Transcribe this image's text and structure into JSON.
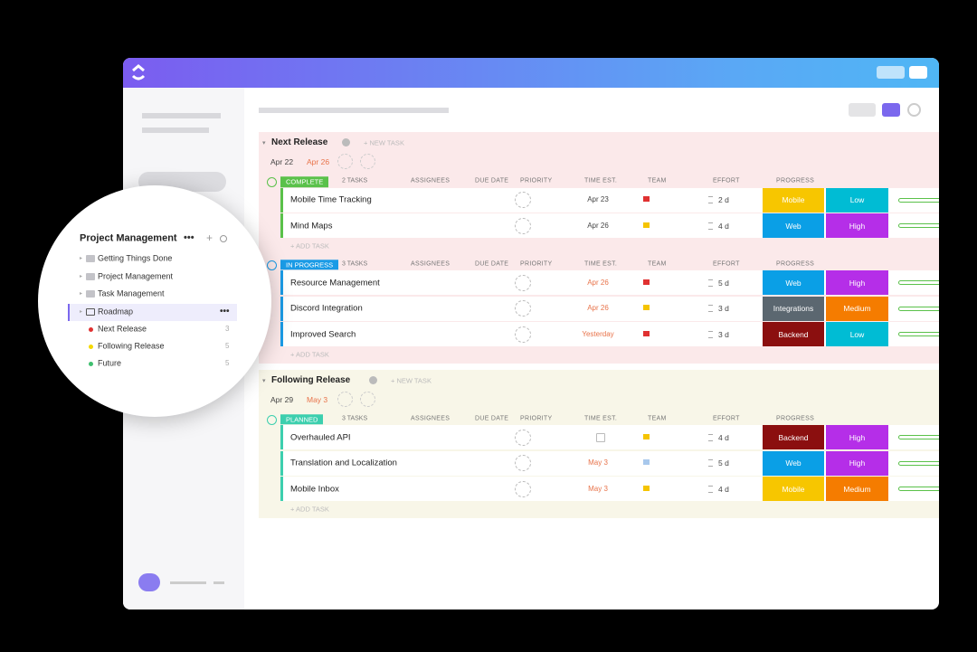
{
  "sidebar": {
    "title": "Project Management",
    "folders": [
      "Getting Things Done",
      "Project Management",
      "Task Management",
      "Roadmap"
    ],
    "lists": [
      {
        "name": "Next Release",
        "count": 3,
        "color": "#e03131"
      },
      {
        "name": "Following Release",
        "count": 5,
        "color": "#f5d800"
      },
      {
        "name": "Future",
        "count": 5,
        "color": "#3fbf6f"
      }
    ]
  },
  "columns": [
    "ASSIGNEES",
    "DUE DATE",
    "PRIORITY",
    "TIME EST.",
    "TEAM",
    "EFFORT",
    "PROGRESS"
  ],
  "new_task": "+ NEW TASK",
  "add_task": "+ ADD TASK",
  "sections": [
    {
      "title": "Next Release",
      "start": "Apr 22",
      "end": "Apr 26",
      "background": "#fbe9ea",
      "groups": [
        {
          "status": "COMPLETE",
          "color": "#5ac14a",
          "count": "2 TASKS",
          "tasks": [
            {
              "name": "Mobile Time Tracking",
              "due": "Apr 23",
              "due_color": "#444",
              "priority": "#e03131",
              "time": "2 d",
              "team": "Mobile",
              "team_color": "#f7c600",
              "effort": "Low",
              "effort_color": "#00bcd4"
            },
            {
              "name": "Mind Maps",
              "due": "Apr 26",
              "due_color": "#444",
              "priority": "#f5c400",
              "time": "4 d",
              "team": "Web",
              "team_color": "#0a9fe6",
              "effort": "High",
              "effort_color": "#b52ee8"
            }
          ]
        },
        {
          "status": "IN PROGRESS",
          "color": "#1a9be6",
          "count": "3 TASKS",
          "tasks": [
            {
              "name": "Resource Management",
              "due": "Apr 26",
              "due_color": "#e8734a",
              "priority": "#e03131",
              "time": "5 d",
              "team": "Web",
              "team_color": "#0a9fe6",
              "effort": "High",
              "effort_color": "#b52ee8"
            },
            {
              "name": "Discord Integration",
              "due": "Apr 26",
              "due_color": "#e8734a",
              "priority": "#f5c400",
              "time": "3 d",
              "team": "Integrations",
              "team_color": "#5b6770",
              "effort": "Medium",
              "effort_color": "#f57c00"
            },
            {
              "name": "Improved Search",
              "due": "Yesterday",
              "due_color": "#e8734a",
              "priority": "#e03131",
              "time": "3 d",
              "team": "Backend",
              "team_color": "#8b0f0f",
              "effort": "Low",
              "effort_color": "#00bcd4"
            }
          ]
        }
      ]
    },
    {
      "title": "Following Release",
      "start": "Apr 29",
      "end": "May 3",
      "background": "#f8f6e8",
      "groups": [
        {
          "status": "PLANNED",
          "color": "#3ccfae",
          "count": "3 TASKS",
          "tasks": [
            {
              "name": "Overhauled API",
              "due": null,
              "due_color": "#444",
              "priority": "#f5c400",
              "time": "4 d",
              "team": "Backend",
              "team_color": "#8b0f0f",
              "effort": "High",
              "effort_color": "#b52ee8"
            },
            {
              "name": "Translation and Localization",
              "due": "May 3",
              "due_color": "#e8734a",
              "priority": "#a8c8ec",
              "time": "5 d",
              "team": "Web",
              "team_color": "#0a9fe6",
              "effort": "High",
              "effort_color": "#b52ee8"
            },
            {
              "name": "Mobile Inbox",
              "due": "May 3",
              "due_color": "#e8734a",
              "priority": "#f5c400",
              "time": "4 d",
              "team": "Mobile",
              "team_color": "#f7c600",
              "effort": "Medium",
              "effort_color": "#f57c00"
            }
          ]
        }
      ]
    }
  ]
}
